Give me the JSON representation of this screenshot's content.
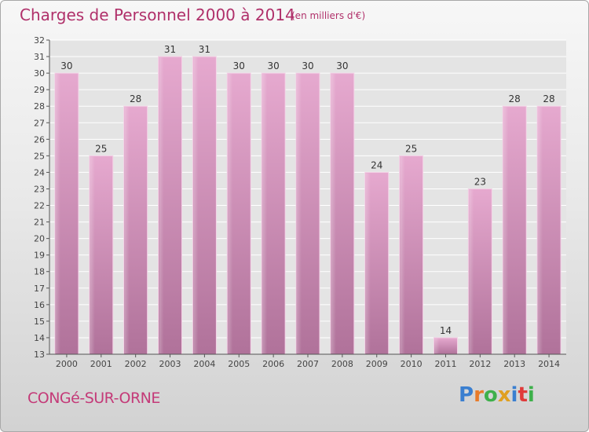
{
  "header": {
    "title": "Charges de Personnel 2000 à 2014",
    "subtitle": "(en milliers d'€)"
  },
  "footer": {
    "commune": "CONGé-SUR-ORNE",
    "brand": "Proxiti",
    "brand_letters": [
      {
        "ch": "P",
        "color": "#3a7fd0"
      },
      {
        "ch": "r",
        "color": "#e87b2a"
      },
      {
        "ch": "o",
        "color": "#3db04a"
      },
      {
        "ch": "x",
        "color": "#e0a020"
      },
      {
        "ch": "i",
        "color": "#3a7fd0"
      },
      {
        "ch": "t",
        "color": "#e03a3a"
      },
      {
        "ch": "i",
        "color": "#3db04a"
      }
    ]
  },
  "colors": {
    "bar_top": "#e6a9cf",
    "bar_bottom": "#b0729a",
    "title": "#b0306a"
  },
  "chart_data": {
    "type": "bar",
    "categories": [
      "2000",
      "2001",
      "2002",
      "2003",
      "2004",
      "2005",
      "2006",
      "2007",
      "2008",
      "2009",
      "2010",
      "2011",
      "2012",
      "2013",
      "2014"
    ],
    "values": [
      30,
      25,
      28,
      31,
      31,
      30,
      30,
      30,
      30,
      24,
      25,
      14,
      23,
      28,
      28
    ],
    "ylim": [
      13,
      32
    ],
    "yticks": [
      13,
      14,
      15,
      16,
      17,
      18,
      19,
      20,
      21,
      22,
      23,
      24,
      25,
      26,
      27,
      28,
      29,
      30,
      31,
      32
    ],
    "grid": true,
    "legend": "none",
    "title": "Charges de Personnel 2000 à 2014",
    "subtitle": "(en milliers d'€)"
  }
}
